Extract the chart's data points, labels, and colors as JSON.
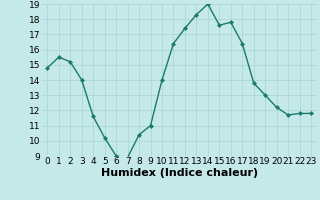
{
  "x": [
    0,
    1,
    2,
    3,
    4,
    5,
    6,
    7,
    8,
    9,
    10,
    11,
    12,
    13,
    14,
    15,
    16,
    17,
    18,
    19,
    20,
    21,
    22,
    23
  ],
  "y": [
    14.8,
    15.5,
    15.2,
    14.0,
    11.6,
    10.2,
    9.0,
    8.9,
    10.4,
    11.0,
    14.0,
    16.4,
    17.4,
    18.3,
    19.0,
    17.6,
    17.8,
    16.4,
    13.8,
    13.0,
    12.2,
    11.7,
    11.8,
    11.8
  ],
  "xlabel": "Humidex (Indice chaleur)",
  "ylim": [
    9,
    19
  ],
  "xlim_min": -0.5,
  "xlim_max": 23.5,
  "yticks": [
    9,
    10,
    11,
    12,
    13,
    14,
    15,
    16,
    17,
    18,
    19
  ],
  "xticks": [
    0,
    1,
    2,
    3,
    4,
    5,
    6,
    7,
    8,
    9,
    10,
    11,
    12,
    13,
    14,
    15,
    16,
    17,
    18,
    19,
    20,
    21,
    22,
    23
  ],
  "line_color": "#1a7a6e",
  "marker_color": "#1a7a6e",
  "bg_color": "#c5e8e8",
  "grid_color": "#a8d4d4",
  "tick_fontsize": 6.5,
  "xlabel_fontsize": 8
}
